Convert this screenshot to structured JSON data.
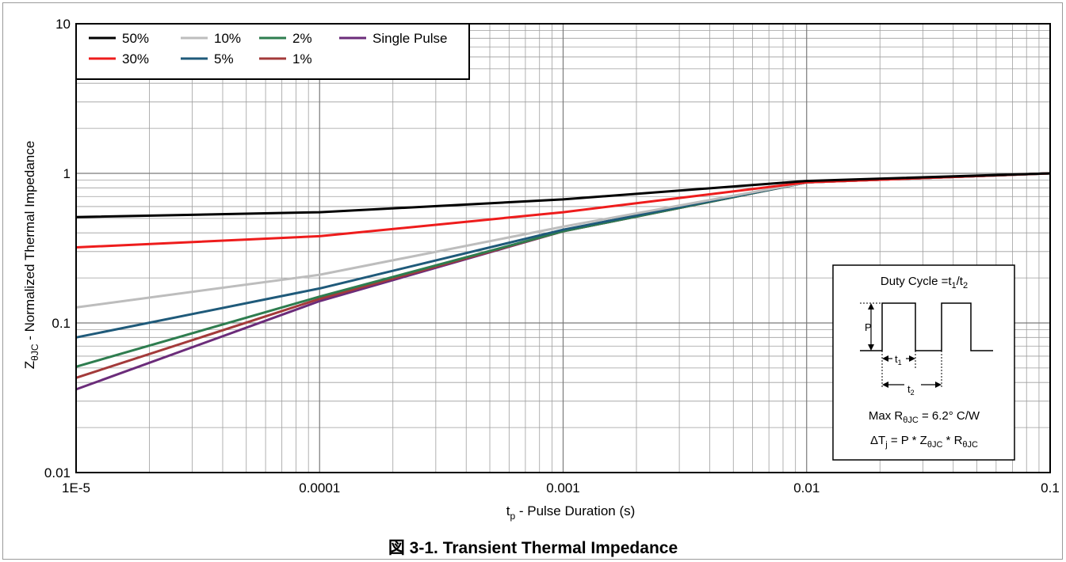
{
  "caption": "図 3-1. Transient Thermal Impedance",
  "chart_data": {
    "type": "line",
    "xscale": "log",
    "yscale": "log",
    "xlim": [
      1e-05,
      0.1
    ],
    "ylim": [
      0.01,
      10
    ],
    "x_ticks": [
      {
        "value": 1e-05,
        "label": "1E-5"
      },
      {
        "value": 0.0001,
        "label": "0.0001"
      },
      {
        "value": 0.001,
        "label": "0.001"
      },
      {
        "value": 0.01,
        "label": "0.01"
      },
      {
        "value": 0.1,
        "label": "0.1"
      }
    ],
    "y_ticks": [
      {
        "value": 0.01,
        "label": "0.01"
      },
      {
        "value": 0.1,
        "label": "0.1"
      },
      {
        "value": 1,
        "label": "1"
      },
      {
        "value": 10,
        "label": "10"
      }
    ],
    "xlabel": {
      "main": "t",
      "sub": "p",
      "rest": " - Pulse Duration (s)"
    },
    "ylabel": {
      "main": "Z",
      "sub": "θJC",
      "rest": " - Normalized Thermal Impedance"
    },
    "grid": true,
    "legend_position": "top-left",
    "series": [
      {
        "name": "50%",
        "color": "#000000",
        "x": [
          1e-05,
          0.0001,
          0.001,
          0.01,
          0.1
        ],
        "y": [
          0.51,
          0.55,
          0.67,
          0.89,
          1.0
        ]
      },
      {
        "name": "30%",
        "color": "#ee1c1c",
        "x": [
          1e-05,
          0.0001,
          0.001,
          0.01,
          0.1
        ],
        "y": [
          0.32,
          0.38,
          0.55,
          0.87,
          1.0
        ]
      },
      {
        "name": "10%",
        "color": "#bdbdbd",
        "x": [
          1e-05,
          0.0001,
          0.001,
          0.01,
          0.1
        ],
        "y": [
          0.127,
          0.21,
          0.44,
          0.87,
          1.0
        ]
      },
      {
        "name": "5%",
        "color": "#1f5a7a",
        "x": [
          1e-05,
          0.0001,
          0.001,
          0.01,
          0.1
        ],
        "y": [
          0.08,
          0.17,
          0.42,
          0.87,
          1.0
        ]
      },
      {
        "name": "2%",
        "color": "#2e7d4f",
        "x": [
          1e-05,
          0.0001,
          0.001,
          0.01,
          0.1
        ],
        "y": [
          0.051,
          0.15,
          0.41,
          0.87,
          1.0
        ]
      },
      {
        "name": "1%",
        "color": "#a33a3a",
        "x": [
          1e-05,
          0.0001,
          0.001,
          0.01,
          0.1
        ],
        "y": [
          0.043,
          0.145,
          0.41,
          0.87,
          1.0
        ]
      },
      {
        "name": "Single Pulse",
        "color": "#6b2c7a",
        "x": [
          1e-05,
          0.0001,
          0.001,
          0.01,
          0.1
        ],
        "y": [
          0.036,
          0.14,
          0.41,
          0.87,
          1.0
        ]
      }
    ],
    "legend_rows": [
      [
        "50%",
        "10%",
        "2%",
        "Single Pulse"
      ],
      [
        "30%",
        "5%",
        "1%"
      ]
    ],
    "inset": {
      "title": {
        "main": "Duty Cycle =t",
        "s1": "1",
        "slash": "/t",
        "s2": "2"
      },
      "p_label": "P",
      "t1": {
        "main": "t",
        "sub": "1"
      },
      "t2": {
        "main": "t",
        "sub": "2"
      },
      "max_r": {
        "a": "Max R",
        "sub": "θJC",
        "b": " = 6.2° C/W"
      },
      "delta": {
        "a": "ΔT",
        "s1": "j",
        "b": " = P * Z",
        "s2": "θJC",
        "c": " * R",
        "s3": "θJC"
      }
    }
  }
}
